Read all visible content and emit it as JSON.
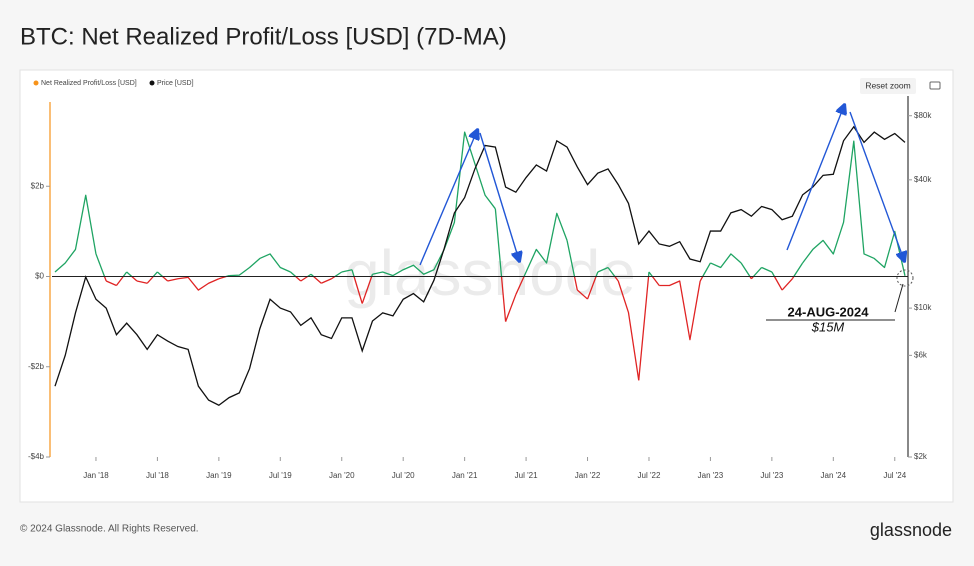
{
  "chart_data": {
    "type": "line",
    "title": "BTC: Net Realized Profit/Loss [USD] (7D-MA)",
    "x": [
      "2017-09",
      "2017-10",
      "2017-11",
      "2017-12",
      "2018-01",
      "2018-02",
      "2018-03",
      "2018-04",
      "2018-05",
      "2018-06",
      "2018-07",
      "2018-08",
      "2018-09",
      "2018-10",
      "2018-11",
      "2018-12",
      "2019-01",
      "2019-02",
      "2019-03",
      "2019-04",
      "2019-05",
      "2019-06",
      "2019-07",
      "2019-08",
      "2019-09",
      "2019-10",
      "2019-11",
      "2019-12",
      "2020-01",
      "2020-02",
      "2020-03",
      "2020-04",
      "2020-05",
      "2020-06",
      "2020-07",
      "2020-08",
      "2020-09",
      "2020-10",
      "2020-11",
      "2020-12",
      "2021-01",
      "2021-02",
      "2021-03",
      "2021-04",
      "2021-05",
      "2021-06",
      "2021-07",
      "2021-08",
      "2021-09",
      "2021-10",
      "2021-11",
      "2021-12",
      "2022-01",
      "2022-02",
      "2022-03",
      "2022-04",
      "2022-05",
      "2022-06",
      "2022-07",
      "2022-08",
      "2022-09",
      "2022-10",
      "2022-11",
      "2022-12",
      "2023-01",
      "2023-02",
      "2023-03",
      "2023-04",
      "2023-05",
      "2023-06",
      "2023-07",
      "2023-08",
      "2023-09",
      "2023-10",
      "2023-11",
      "2023-12",
      "2024-01",
      "2024-02",
      "2024-03",
      "2024-04",
      "2024-05",
      "2024-06",
      "2024-07",
      "2024-08"
    ],
    "series": [
      {
        "name": "Net Realized Profit/Loss [USD]",
        "color": "#f7931a",
        "positive_color": "#1fa463",
        "negative_color": "#e02424",
        "values": [
          100000000.0,
          300000000.0,
          600000000.0,
          1800000000.0,
          500000000.0,
          -100000000.0,
          -200000000.0,
          100000000.0,
          -100000000.0,
          -150000000.0,
          100000000.0,
          -100000000.0,
          -50000000.0,
          -20000000.0,
          -300000000.0,
          -150000000.0,
          -50000000.0,
          20000000.0,
          30000000.0,
          200000000.0,
          400000000.0,
          500000000.0,
          200000000.0,
          100000000.0,
          -100000000.0,
          50000000.0,
          -150000000.0,
          -50000000.0,
          100000000.0,
          150000000.0,
          -600000000.0,
          50000000.0,
          100000000.0,
          20000000.0,
          150000000.0,
          250000000.0,
          50000000.0,
          150000000.0,
          600000000.0,
          1200000000.0,
          3200000000.0,
          2500000000.0,
          1800000000.0,
          1500000000.0,
          -1000000000.0,
          -400000000.0,
          100000000.0,
          600000000.0,
          300000000.0,
          1400000000.0,
          800000000.0,
          -300000000.0,
          -500000000.0,
          100000000.0,
          200000000.0,
          -100000000.0,
          -800000000.0,
          -2300000000.0,
          100000000.0,
          -200000000.0,
          -200000000.0,
          -100000000.0,
          -1400000000.0,
          -100000000.0,
          300000000.0,
          200000000.0,
          500000000.0,
          300000000.0,
          -50000000.0,
          200000000.0,
          100000000.0,
          -300000000.0,
          -50000000.0,
          300000000.0,
          600000000.0,
          800000000.0,
          500000000.0,
          1200000000.0,
          3000000000.0,
          500000000.0,
          400000000.0,
          200000000.0,
          1000000000.0,
          15000000.0
        ]
      },
      {
        "name": "Price [USD]",
        "color": "#111111",
        "axis": "y2",
        "values": [
          4300,
          6000,
          9500,
          14000,
          11000,
          10000,
          7500,
          8500,
          7500,
          6400,
          7500,
          7000,
          6600,
          6400,
          4300,
          3700,
          3500,
          3800,
          4000,
          5200,
          8000,
          11000,
          10000,
          9600,
          8300,
          9000,
          7500,
          7200,
          9000,
          9000,
          6300,
          8700,
          9500,
          9200,
          11000,
          11700,
          10700,
          13500,
          19000,
          28000,
          33000,
          45000,
          58000,
          57000,
          37000,
          35000,
          41000,
          47000,
          44000,
          61000,
          57000,
          46000,
          38000,
          43000,
          45000,
          38000,
          31000,
          20000,
          23000,
          20000,
          19500,
          20500,
          17000,
          16500,
          23000,
          23000,
          28000,
          29000,
          27000,
          30000,
          29000,
          26000,
          27000,
          34000,
          37000,
          42000,
          42500,
          61000,
          71000,
          60000,
          67000,
          62000,
          66000,
          60000
        ]
      }
    ],
    "xticks": [
      {
        "value": "2018-01",
        "label": "Jan '18"
      },
      {
        "value": "2018-07",
        "label": "Jul '18"
      },
      {
        "value": "2019-01",
        "label": "Jan '19"
      },
      {
        "value": "2019-07",
        "label": "Jul '19"
      },
      {
        "value": "2020-01",
        "label": "Jan '20"
      },
      {
        "value": "2020-07",
        "label": "Jul '20"
      },
      {
        "value": "2021-01",
        "label": "Jan '21"
      },
      {
        "value": "2021-07",
        "label": "Jul '21"
      },
      {
        "value": "2022-01",
        "label": "Jan '22"
      },
      {
        "value": "2022-07",
        "label": "Jul '22"
      },
      {
        "value": "2023-01",
        "label": "Jan '23"
      },
      {
        "value": "2023-07",
        "label": "Jul '23"
      },
      {
        "value": "2024-01",
        "label": "Jan '24"
      },
      {
        "value": "2024-07",
        "label": "Jul '24"
      }
    ],
    "ylim": [
      -4000000000.0,
      4000000000.0
    ],
    "yticks": [
      {
        "value": -4000000000.0,
        "label": "-$4b"
      },
      {
        "value": -2000000000.0,
        "label": "-$2b"
      },
      {
        "value": 0,
        "label": "$0"
      },
      {
        "value": 2000000000.0,
        "label": "$2b"
      }
    ],
    "y2lim": [
      2000,
      99000
    ],
    "y2log": true,
    "y2ticks": [
      {
        "value": 2000,
        "label": "$2k"
      },
      {
        "value": 6000,
        "label": "$6k"
      },
      {
        "value": 10000,
        "label": "$10k"
      },
      {
        "value": 40000,
        "label": "$40k"
      },
      {
        "value": 80000,
        "label": "$80k"
      }
    ],
    "annotations": [
      "24-AUG-2024",
      "$15M"
    ],
    "watermark": "glassnode",
    "reset_button": "Reset zoom"
  },
  "footer": {
    "copyright": "© 2024 Glassnode. All Rights Reserved.",
    "logo": "glassnode"
  }
}
